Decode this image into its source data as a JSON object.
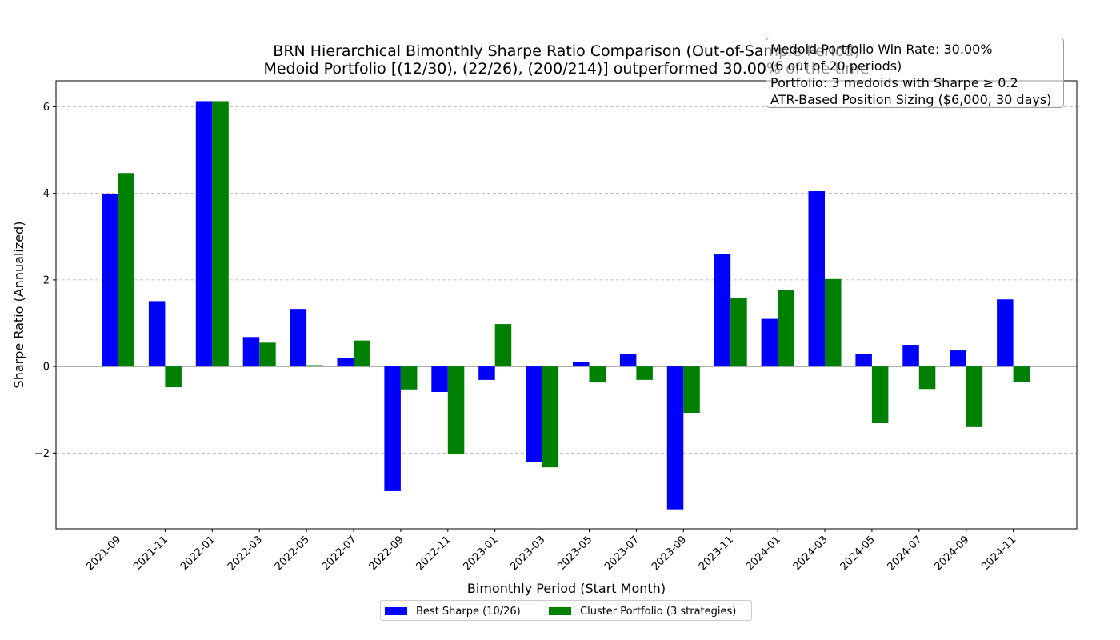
{
  "chart_data": {
    "type": "bar",
    "title": "BRN Hierarchical Bimonthly Sharpe Ratio Comparison (Out-of-Sample Period)",
    "subtitle": "Medoid Portfolio [(12/30), (22/26), (200/214)] outperformed 30.00% of the time",
    "xlabel": "Bimonthly Period (Start Month)",
    "ylabel": "Sharpe Ratio (Annualized)",
    "ylim": [
      -3.75,
      6.6
    ],
    "yticks": [
      -2,
      0,
      2,
      4,
      6
    ],
    "grid": "y-dashed",
    "legend_position": "bottom-center",
    "categories": [
      "2021-09",
      "2021-11",
      "2022-01",
      "2022-03",
      "2022-05",
      "2022-07",
      "2022-09",
      "2022-11",
      "2023-01",
      "2023-03",
      "2023-05",
      "2023-07",
      "2023-09",
      "2023-11",
      "2024-01",
      "2024-03",
      "2024-05",
      "2024-07",
      "2024-09",
      "2024-11"
    ],
    "series": [
      {
        "name": "Best Sharpe (10/26)",
        "color": "#0000ff",
        "values": [
          3.99,
          1.51,
          6.13,
          0.68,
          1.33,
          0.2,
          -2.88,
          -0.59,
          -0.31,
          -2.2,
          0.11,
          0.29,
          -3.3,
          2.6,
          1.1,
          4.05,
          0.29,
          0.5,
          0.37,
          1.55
        ]
      },
      {
        "name": "Cluster Portfolio (3 strategies)",
        "color": "#008000",
        "values": [
          4.47,
          -0.48,
          6.13,
          0.55,
          0.03,
          0.6,
          -0.53,
          -2.03,
          0.98,
          -2.33,
          -0.37,
          -0.31,
          -1.07,
          1.58,
          1.77,
          2.02,
          -1.31,
          -0.52,
          -1.4,
          -0.35
        ]
      }
    ],
    "annotations": [
      "Medoid Portfolio Win Rate: 30.00%",
      "(6 out of 20 periods)",
      "Portfolio: 3 medoids with Sharpe ≥ 0.2",
      "ATR-Based Position Sizing ($6,000, 30 days)"
    ]
  }
}
